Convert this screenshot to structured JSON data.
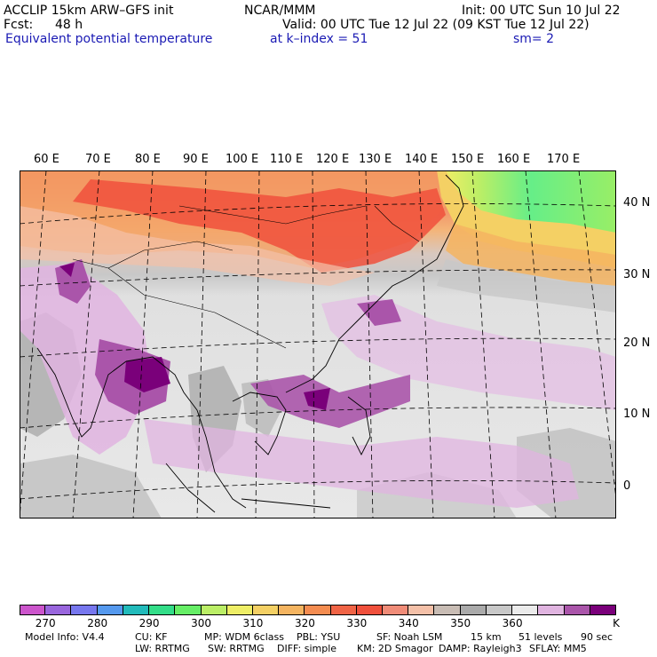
{
  "header": {
    "model": "ACCLIP 15km ARW–GFS init",
    "org": "NCAR/MMM",
    "init": "Init: 00 UTC Sun 10 Jul 22",
    "fcst_label": "Fcst:",
    "fcst_value": "48 h",
    "valid": "Valid: 00 UTC Tue 12 Jul 22 (09 KST Tue 12 Jul 22)",
    "field": "Equivalent potential temperature",
    "level": "at k–index =  51",
    "smooth": "sm= 2"
  },
  "map": {
    "lon_labels": [
      "60 E",
      "70 E",
      "80 E",
      "90 E",
      "100 E",
      "110 E",
      "120 E",
      "130 E",
      "140 E",
      "150 E",
      "160 E",
      "170 E"
    ],
    "lat_labels": [
      "40 N",
      "30 N",
      "20 N",
      "10 N",
      "0"
    ]
  },
  "colorbar": {
    "unit": "K",
    "colors": [
      "#cc55cc",
      "#9966dd",
      "#7777ee",
      "#5599ee",
      "#22bbbb",
      "#33dd88",
      "#66ee66",
      "#bbee66",
      "#eeee66",
      "#f4d064",
      "#f4b460",
      "#f48c50",
      "#f06446",
      "#f0503c",
      "#f08c78",
      "#f4c0a8",
      "#c8bcb4",
      "#aaaaaa",
      "#c8c8c8",
      "#ebebeb",
      "#e0b4e0",
      "#aa55aa",
      "#7a007a"
    ],
    "ticks": [
      "270",
      "280",
      "290",
      "300",
      "310",
      "320",
      "330",
      "340",
      "350",
      "360"
    ]
  },
  "footer": {
    "line1": [
      "Model Info: V4.4",
      "CU: KF",
      "MP: WDM 6class",
      "PBL: YSU",
      "SF: Noah LSM",
      "15 km",
      "51 levels",
      "90 sec"
    ],
    "line2": [
      "LW: RRTMG",
      "SW: RRTMG",
      "DIFF: simple",
      "KM: 2D Smagor",
      "DAMP: Rayleigh3",
      "SFLAY: MM5"
    ]
  }
}
